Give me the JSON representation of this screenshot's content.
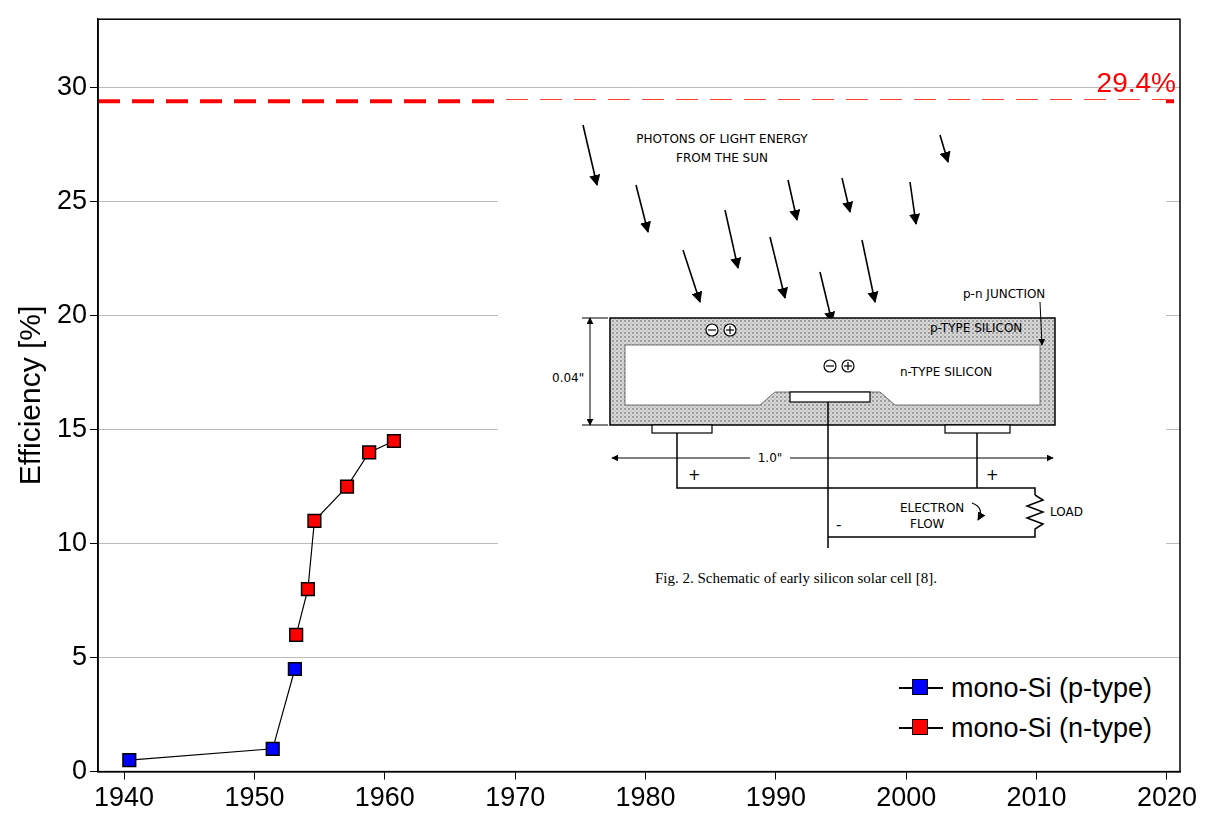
{
  "chart_data": {
    "type": "line",
    "y_label": "Efficiency [%]",
    "xlim": [
      1938,
      2021
    ],
    "xticks": [
      1940,
      1950,
      1960,
      1970,
      1980,
      1990,
      2000,
      2010,
      2020
    ],
    "ylim": [
      0,
      33
    ],
    "yticks": [
      0,
      5,
      10,
      15,
      20,
      25,
      30
    ],
    "grid": true,
    "legend": "bottom right",
    "series": [
      {
        "name": "mono-Si (p-type)",
        "color": "#0000ff",
        "marker": "square",
        "x": [
          1940.4,
          1951.4,
          1953.1
        ],
        "values": [
          0.5,
          1.0,
          4.5
        ]
      },
      {
        "name": "mono-Si (n-type)",
        "color": "#ff0000",
        "marker": "square",
        "x": [
          1953.2,
          1954.1,
          1954.6,
          1957.1,
          1958.8,
          1960.7
        ],
        "values": [
          6.0,
          8.0,
          11.0,
          12.5,
          14.0,
          14.5
        ]
      }
    ],
    "annotations": [
      {
        "text": "29.4%",
        "y": 29.4,
        "color": "#ff0000",
        "line_style": "dashed"
      }
    ],
    "inset": {
      "photons": [
        "PHOTONS OF LIGHT ENERGY",
        "FROM THE SUN"
      ],
      "pn_junction": "p-n JUNCTION",
      "p_type": "p-TYPE SILICON",
      "n_type": "n-TYPE SILICON",
      "thickness": "0.04\"",
      "width": "1.0\"",
      "plus": "+",
      "minus": "-",
      "electron_flow": [
        "ELECTRON",
        "FLOW"
      ],
      "load": "LOAD",
      "caption": "Fig. 2.   Schematic of early silicon solar cell [8]."
    }
  }
}
